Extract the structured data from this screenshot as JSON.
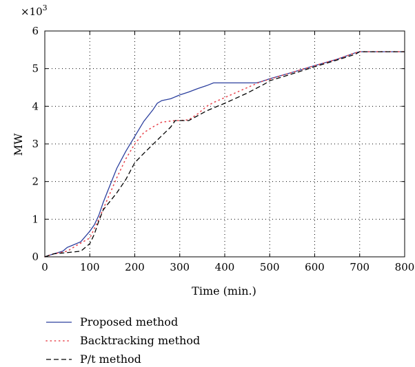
{
  "chart_data": {
    "type": "line",
    "xlabel": "Time (min.)",
    "ylabel": "MW",
    "y_exponent_label": "×10",
    "y_exponent_power": "3",
    "xlim": [
      0,
      800
    ],
    "ylim": [
      0,
      6
    ],
    "x_ticks": [
      0,
      100,
      200,
      300,
      400,
      500,
      600,
      700,
      800
    ],
    "y_ticks": [
      0,
      1,
      2,
      3,
      4,
      5,
      6
    ],
    "x_tick_labels": [
      "0",
      "100",
      "200",
      "300",
      "400",
      "500",
      "600",
      "700",
      "800"
    ],
    "y_tick_labels": [
      "0",
      "1",
      "2",
      "3",
      "4",
      "5",
      "6"
    ],
    "grid": "dotted",
    "legend_position": "below",
    "series": [
      {
        "name": "Proposed method",
        "color": "#2b3f9e",
        "style": "solid",
        "x": [
          0,
          20,
          40,
          50,
          60,
          80,
          100,
          110,
          120,
          130,
          140,
          160,
          180,
          200,
          220,
          240,
          250,
          260,
          280,
          300,
          320,
          340,
          360,
          375,
          470,
          480,
          500,
          550,
          600,
          650,
          690,
          700,
          800
        ],
        "y": [
          0,
          0.08,
          0.15,
          0.25,
          0.3,
          0.4,
          0.68,
          0.85,
          1.1,
          1.45,
          1.75,
          2.35,
          2.8,
          3.2,
          3.6,
          3.9,
          4.08,
          4.15,
          4.2,
          4.3,
          4.38,
          4.47,
          4.55,
          4.62,
          4.62,
          4.65,
          4.73,
          4.9,
          5.08,
          5.25,
          5.42,
          5.45,
          5.45
        ]
      },
      {
        "name": "Backtracking method",
        "color": "#e8474f",
        "style": "dotted",
        "x": [
          0,
          20,
          50,
          70,
          100,
          120,
          140,
          160,
          180,
          200,
          220,
          240,
          260,
          290,
          300,
          320,
          340,
          360,
          375,
          470,
          480,
          500,
          550,
          600,
          650,
          690,
          700,
          800
        ],
        "y": [
          0,
          0.08,
          0.15,
          0.3,
          0.5,
          1.0,
          1.55,
          2.1,
          2.6,
          3.0,
          3.3,
          3.45,
          3.58,
          3.62,
          3.62,
          3.64,
          3.8,
          4.0,
          4.1,
          4.6,
          4.65,
          4.72,
          4.9,
          5.08,
          5.25,
          5.42,
          5.45,
          5.45
        ]
      },
      {
        "name": "P/t method",
        "color": "#000000",
        "style": "dashed",
        "x": [
          0,
          20,
          40,
          80,
          100,
          110,
          120,
          130,
          160,
          180,
          200,
          220,
          250,
          280,
          290,
          300,
          320,
          340,
          360,
          380,
          400,
          450,
          490,
          500,
          550,
          600,
          650,
          690,
          700,
          800
        ],
        "y": [
          0,
          0.08,
          0.1,
          0.15,
          0.35,
          0.6,
          0.95,
          1.25,
          1.7,
          2.05,
          2.5,
          2.75,
          3.1,
          3.45,
          3.62,
          3.62,
          3.62,
          3.75,
          3.88,
          3.98,
          4.08,
          4.35,
          4.6,
          4.68,
          4.86,
          5.05,
          5.23,
          5.38,
          5.45,
          5.45
        ]
      }
    ]
  }
}
